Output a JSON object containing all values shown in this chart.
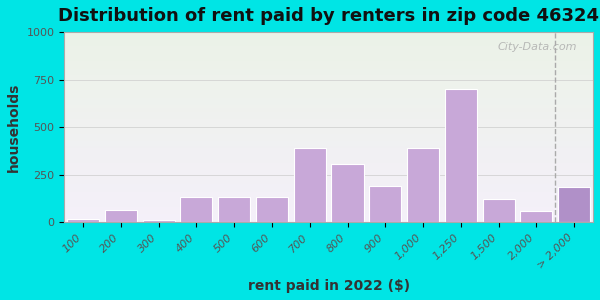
{
  "title": "Distribution of rent paid by renters in zip code 46324",
  "xlabel": "rent paid in 2022 ($)",
  "ylabel": "households",
  "bar_labels": [
    "100",
    "200",
    "300",
    "400",
    "500",
    "600",
    "700",
    "800",
    "900",
    "1,000",
    "1,250",
    "1,500",
    "2,000",
    "> 2,000"
  ],
  "bar_values": [
    15,
    65,
    10,
    130,
    130,
    130,
    390,
    305,
    190,
    390,
    700,
    120,
    60,
    185
  ],
  "bar_color": "#c8a8d8",
  "bar_color_last": "#b090c8",
  "edge_color": "#ffffff",
  "ylim": [
    0,
    1000
  ],
  "yticks": [
    0,
    250,
    500,
    750,
    1000
  ],
  "bg_outer": "#00e5e5",
  "bg_inner_gradient_top": "#e8f5e0",
  "bg_inner_gradient_bottom": "#f5f0fa",
  "title_fontsize": 13,
  "axis_fontsize": 10,
  "tick_fontsize": 8,
  "watermark": "City-Data.com"
}
